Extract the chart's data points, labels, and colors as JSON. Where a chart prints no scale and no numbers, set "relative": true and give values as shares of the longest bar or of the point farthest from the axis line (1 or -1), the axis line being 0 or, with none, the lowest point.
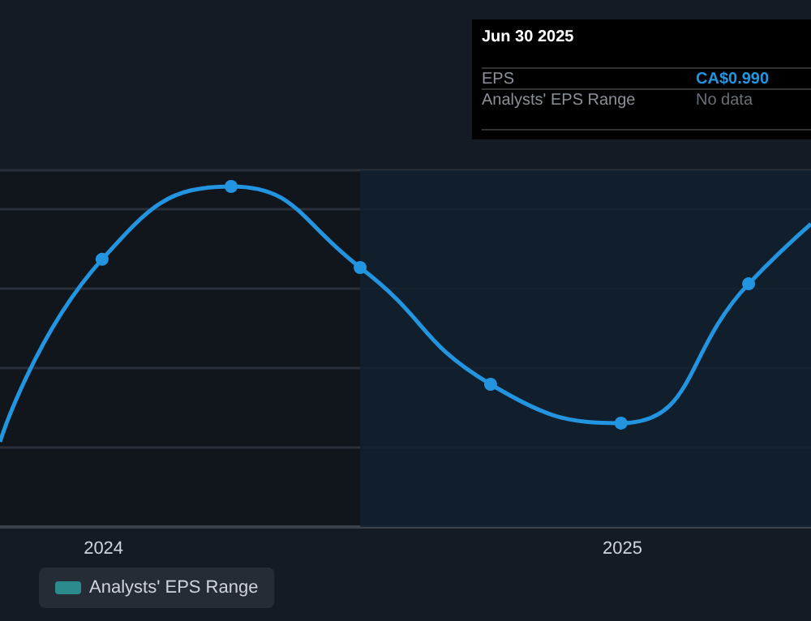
{
  "chart_data": {
    "type": "line",
    "relative": true,
    "x": [
      "2023-10-20",
      "2023-12-31",
      "2024-03-31",
      "2024-06-30",
      "2024-09-30",
      "2024-12-31",
      "2025-03-31",
      "2025-05-14"
    ],
    "series": [
      {
        "color": "#2394df",
        "values": [
          0.25,
          0.786,
          1,
          0.762,
          0.419,
          0.305,
          0.714,
          0.89
        ]
      },
      {
        "name": "Analysts' EPS Range",
        "color": "#2a8a8c",
        "values": [
          null,
          null,
          null,
          null,
          null,
          null,
          null,
          null
        ]
      }
    ],
    "xlim": [
      "2023-10-20",
      "2025-05-14"
    ],
    "xticks": [
      {
        "value": "2024-01-01",
        "label": "2024"
      },
      {
        "value": "2025-01-01",
        "label": "2025"
      }
    ],
    "bands": [
      {
        "axis": "x",
        "from": "2024-06-30",
        "to": "2025-05-14",
        "color": "#12202e"
      }
    ],
    "grid": "y",
    "marker": "circle",
    "line_style": "solid",
    "legend": "bottom left",
    "annotations": [
      "Jun 30 2025",
      "EPS",
      "CA$0.990",
      "Analysts' EPS Range",
      "No data"
    ]
  }
}
